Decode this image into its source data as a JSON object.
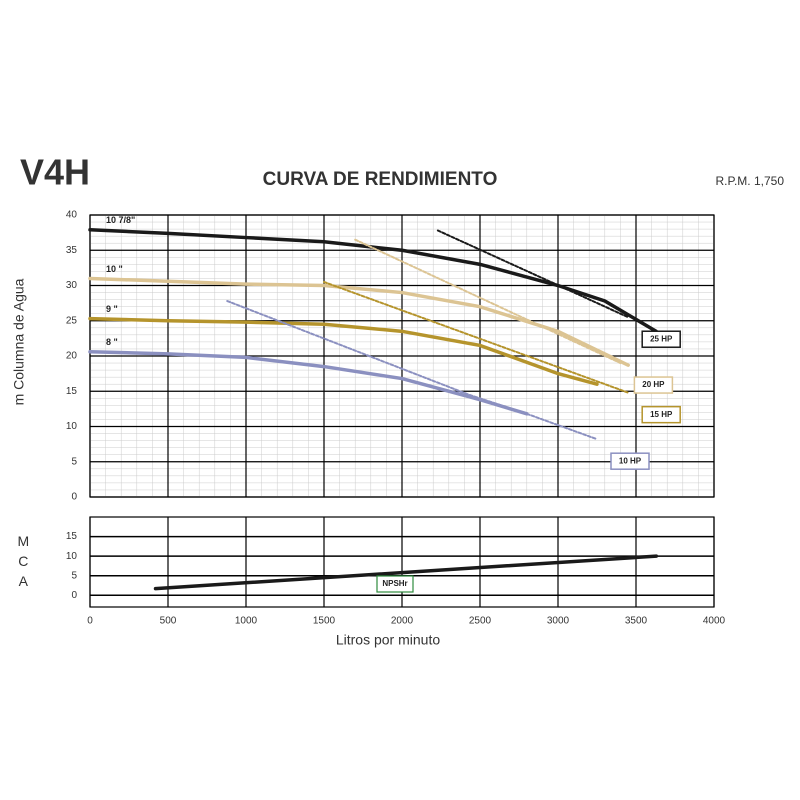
{
  "chart_data": [
    {
      "type": "line",
      "model": "V4H",
      "title": "CURVA DE RENDIMIENTO",
      "subtitle": "R.P.M. 1,750",
      "ylabel": "m Columna de Agua",
      "xlim": [
        0,
        4000
      ],
      "xticks": [
        0,
        500,
        1000,
        1500,
        2000,
        2500,
        3000,
        3500,
        4000
      ],
      "ylim": [
        0,
        40
      ],
      "yticks": [
        0,
        5,
        10,
        15,
        20,
        25,
        30,
        35,
        40
      ],
      "grid": true,
      "series": [
        {
          "name": "10 7/8\"",
          "color": "#1a1a1a",
          "dashed": false,
          "x": [
            0,
            500,
            1000,
            1500,
            2000,
            2500,
            3000,
            3300,
            3630
          ],
          "values": [
            37.9,
            37.4,
            36.8,
            36.2,
            35,
            33,
            30,
            27.8,
            23.5
          ]
        },
        {
          "name": "10 \"",
          "color": "#dcc493",
          "dashed": false,
          "x": [
            0,
            500,
            1000,
            1500,
            2000,
            2500,
            3000,
            3450
          ],
          "values": [
            31,
            30.6,
            30.2,
            30,
            29,
            27,
            23.5,
            18.7
          ]
        },
        {
          "name": "9 \"",
          "color": "#b5942c",
          "dashed": false,
          "x": [
            0,
            500,
            1000,
            1500,
            2000,
            2500,
            3000,
            3250
          ],
          "values": [
            25.3,
            25,
            24.8,
            24.5,
            23.5,
            21.5,
            17.5,
            16
          ]
        },
        {
          "name": "8 \"",
          "color": "#8b90c0",
          "dashed": false,
          "x": [
            0,
            500,
            1000,
            1500,
            2000,
            2500,
            2800
          ],
          "values": [
            20.6,
            20.3,
            19.8,
            18.5,
            16.8,
            13.8,
            11.8
          ]
        },
        {
          "name": "25 HP",
          "color": "#1a1a1a",
          "dashed": true,
          "x": [
            2230,
            3450
          ],
          "values": [
            37.8,
            25.5
          ]
        },
        {
          "name": "20 HP",
          "color": "#dcc493",
          "dashed": true,
          "x": [
            1700,
            3400
          ],
          "values": [
            36.5,
            19
          ]
        },
        {
          "name": "15 HP",
          "color": "#b5942c",
          "dashed": true,
          "x": [
            1500,
            3450
          ],
          "values": [
            30.5,
            14.8
          ]
        },
        {
          "name": "10 HP",
          "color": "#8b90c0",
          "dashed": true,
          "x": [
            880,
            2430,
            2800,
            3250
          ],
          "values": [
            27.8,
            14.5,
            11.8,
            8.2
          ]
        }
      ]
    },
    {
      "type": "line",
      "ylabel": "MCA",
      "xlabel": "Litros por minuto",
      "xlim": [
        0,
        4000
      ],
      "xticks": [
        0,
        500,
        1000,
        1500,
        2000,
        2500,
        3000,
        3500,
        4000
      ],
      "ylim": [
        -3,
        20
      ],
      "yticks": [
        0,
        5,
        10,
        15
      ],
      "grid": true,
      "series": [
        {
          "name": "NPSHr",
          "color": "#1a1a1a",
          "label_color": "#2e8b3e",
          "dashed": false,
          "x": [
            420,
            3630
          ],
          "values": [
            1.7,
            10
          ]
        }
      ]
    }
  ]
}
